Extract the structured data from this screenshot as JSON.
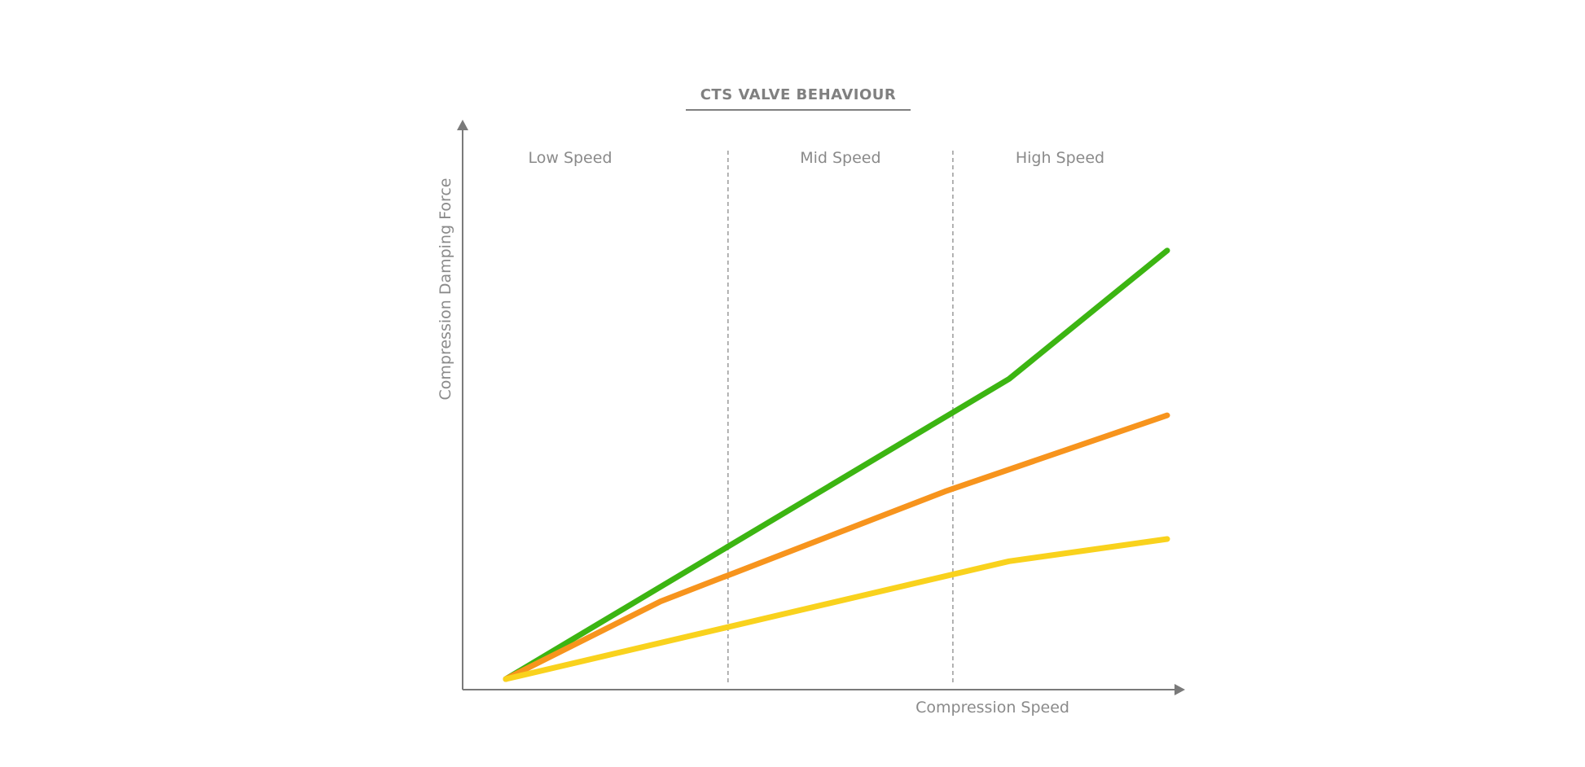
{
  "chart_data": {
    "type": "line",
    "title": "CTS VALVE BEHAVIOUR",
    "xlabel": "Compression Speed",
    "ylabel": "Compression Damping Force",
    "x_axis_ticks": false,
    "y_axis_ticks": false,
    "grid": false,
    "xlim": [
      0,
      100
    ],
    "ylim": [
      0,
      100
    ],
    "regions": [
      {
        "label": "Low Speed",
        "range": [
          0,
          33.6
        ]
      },
      {
        "label": "Mid Speed",
        "range": [
          33.6,
          67.6
        ]
      },
      {
        "label": "High Speed",
        "range": [
          67.6,
          100
        ]
      }
    ],
    "series": [
      {
        "color": "#3cb512",
        "x": [
          0,
          76.1,
          100
        ],
        "y": [
          0,
          56.8,
          81.1
        ]
      },
      {
        "color": "#f7941d",
        "x": [
          0,
          23.4,
          66.4,
          100
        ],
        "y": [
          0,
          14.7,
          35.5,
          49.9
        ]
      },
      {
        "color": "#f9d21d",
        "x": [
          0,
          76.1,
          100
        ],
        "y": [
          0,
          22.3,
          26.5
        ]
      }
    ]
  }
}
